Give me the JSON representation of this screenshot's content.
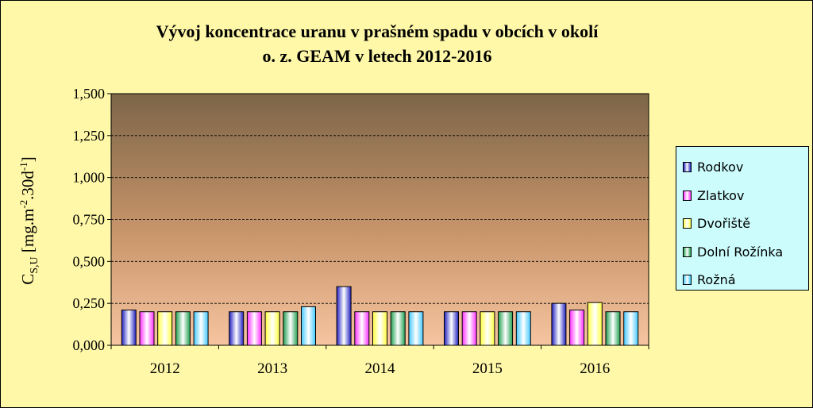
{
  "chart_data": {
    "type": "bar",
    "title": [
      "Vývoj koncentrace uranu v prašném spadu v obcích v okolí",
      "o. z. GEAM v letech 2012-2016"
    ],
    "ylabel": {
      "main": "C",
      "sub": "S,U",
      "unit_open": " [mg.m",
      "sup1": "-2",
      "unit_mid": ".30d",
      "sup2": "-1",
      "unit_close": "]"
    },
    "categories": [
      "2012",
      "2013",
      "2014",
      "2015",
      "2016"
    ],
    "ylim": [
      0,
      1.5
    ],
    "yticks": [
      0,
      0.25,
      0.5,
      0.75,
      1.0,
      1.25,
      1.5
    ],
    "ytick_labels": [
      "0,000",
      "0,250",
      "0,500",
      "0,750",
      "1,000",
      "1,250",
      "1,500"
    ],
    "grid": true,
    "legend_position": "right",
    "series": [
      {
        "name": "Rodkov",
        "color": "#2020c0",
        "values": [
          0.21,
          0.2,
          0.35,
          0.2,
          0.25
        ]
      },
      {
        "name": "Zlatkov",
        "color": "#ff30ff",
        "values": [
          0.2,
          0.2,
          0.2,
          0.2,
          0.21
        ]
      },
      {
        "name": "Dvořiště",
        "color": "#ffff40",
        "values": [
          0.2,
          0.2,
          0.2,
          0.2,
          0.255
        ]
      },
      {
        "name": "Dolní Rožínka",
        "color": "#20a050",
        "values": [
          0.2,
          0.2,
          0.2,
          0.2,
          0.2
        ]
      },
      {
        "name": "Rožná",
        "color": "#40c8ff",
        "values": [
          0.2,
          0.23,
          0.2,
          0.2,
          0.2
        ]
      }
    ]
  }
}
